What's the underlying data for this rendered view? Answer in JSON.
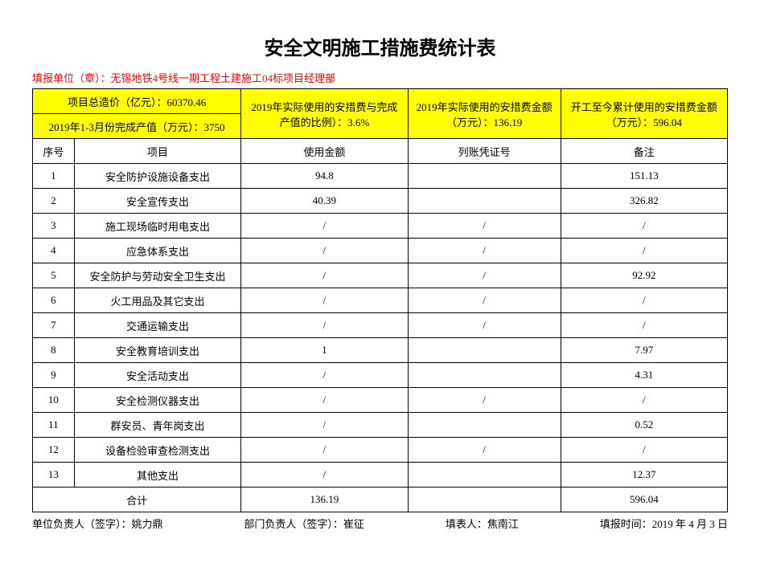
{
  "title": "安全文明施工措施费统计表",
  "reporter": {
    "label": "填报单位（章）：",
    "value": "无锡地铁4号线一期工程土建施工04标项目经理部"
  },
  "summary": {
    "total_cost": "项目总造价（亿元）：60370.46",
    "completed_value": "2019年1-3月份完成产值（万元）：3750",
    "ratio": "2019年实际使用的安措费与完成产值的比例）：3.6%",
    "period_amount": "2019年实际使用的安措费金额（万元）：136.19",
    "cumulative_amount": "开工至今累计使用的安措费金额（万元）：596.04"
  },
  "columns": {
    "seq": "序号",
    "item": "项目",
    "amount": "使用金额",
    "voucher": "列账凭证号",
    "remark": "备注"
  },
  "rows": [
    {
      "seq": "1",
      "item": "安全防护设施设备支出",
      "amount": "94.8",
      "voucher": "",
      "remark": "151.13"
    },
    {
      "seq": "2",
      "item": "安全宣传支出",
      "amount": "40.39",
      "voucher": "",
      "remark": "326.82"
    },
    {
      "seq": "3",
      "item": "施工现场临时用电支出",
      "amount": "/",
      "voucher": "/",
      "remark": "/"
    },
    {
      "seq": "4",
      "item": "应急体系支出",
      "amount": "/",
      "voucher": "/",
      "remark": "/"
    },
    {
      "seq": "5",
      "item": "安全防护与劳动安全卫生支出",
      "amount": "/",
      "voucher": "/",
      "remark": "92.92"
    },
    {
      "seq": "6",
      "item": "火工用品及其它支出",
      "amount": "/",
      "voucher": "/",
      "remark": "/"
    },
    {
      "seq": "7",
      "item": "交通运输支出",
      "amount": "/",
      "voucher": "/",
      "remark": "/"
    },
    {
      "seq": "8",
      "item": "安全教育培训支出",
      "amount": "1",
      "voucher": "",
      "remark": "7.97"
    },
    {
      "seq": "9",
      "item": "安全活动支出",
      "amount": "/",
      "voucher": "",
      "remark": "4.31"
    },
    {
      "seq": "10",
      "item": "安全检测仪器支出",
      "amount": "/",
      "voucher": "/",
      "remark": "/"
    },
    {
      "seq": "11",
      "item": "群安员、青年岗支出",
      "amount": "/",
      "voucher": "",
      "remark": "0.52"
    },
    {
      "seq": "12",
      "item": "设备检验审查检测支出",
      "amount": "/",
      "voucher": "/",
      "remark": "/"
    },
    {
      "seq": "13",
      "item": "其他支出",
      "amount": "/",
      "voucher": "",
      "remark": "12.37"
    }
  ],
  "total_row": {
    "label": "合计",
    "amount": "136.19",
    "voucher": "",
    "remark": "596.04"
  },
  "footer": {
    "unit_leader_label": "单位负责人（签字）：",
    "unit_leader_value": "姚力鼎",
    "dept_leader_label": "部门负责人（签字）：",
    "dept_leader_value": "崔征",
    "filler_label": "填表人：",
    "filler_value": "焦南江",
    "date_label": "填报时间：",
    "date_value": "2019 年 4 月 3 日"
  }
}
